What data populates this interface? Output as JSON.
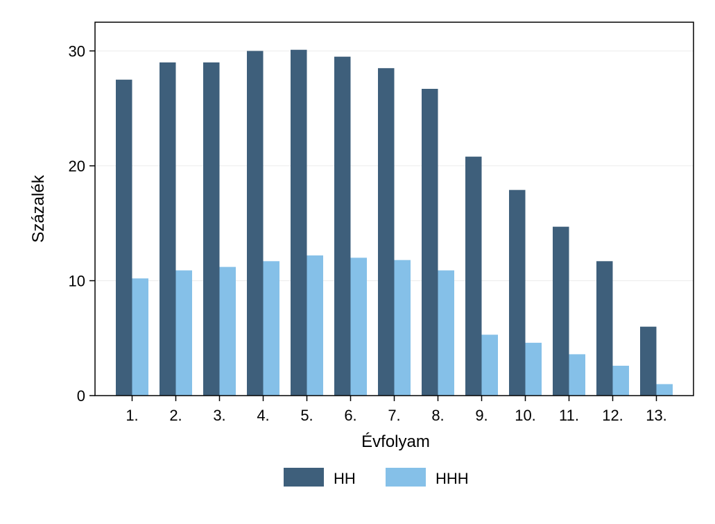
{
  "chart_data": {
    "type": "bar",
    "title": "",
    "xlabel": "Évfolyam",
    "ylabel": "Százalék",
    "ylim": [
      0,
      32.5
    ],
    "yticks": [
      0,
      10,
      20,
      30
    ],
    "grid": true,
    "legend_position": "bottom",
    "categories": [
      "1.",
      "2.",
      "3.",
      "4.",
      "5.",
      "6.",
      "7.",
      "8.",
      "9.",
      "10.",
      "11.",
      "12.",
      "13."
    ],
    "series": [
      {
        "name": "HH",
        "color": "#3e5f7b",
        "values": [
          27.5,
          29.0,
          29.0,
          30.0,
          30.1,
          29.5,
          28.5,
          26.7,
          20.8,
          17.9,
          14.7,
          11.7,
          6.0
        ]
      },
      {
        "name": "HHH",
        "color": "#85c0e8",
        "values": [
          10.2,
          10.9,
          11.2,
          11.7,
          12.2,
          12.0,
          11.8,
          10.9,
          5.3,
          4.6,
          3.6,
          2.6,
          1.0
        ]
      }
    ]
  }
}
